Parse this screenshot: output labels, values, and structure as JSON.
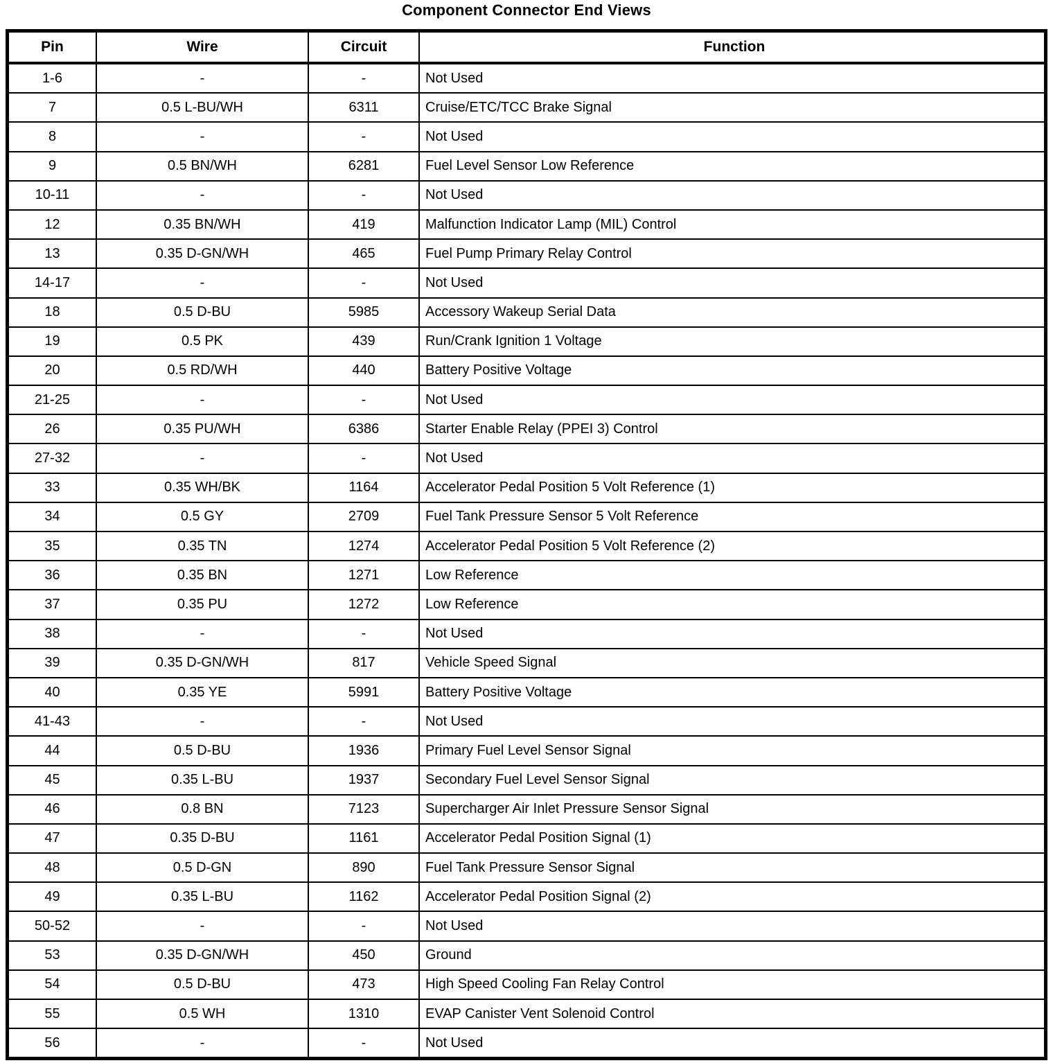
{
  "title": "Component Connector End Views",
  "colors": {
    "background": "#ffffff",
    "text": "#000000",
    "border": "#000000"
  },
  "table": {
    "headers": [
      "Pin",
      "Wire",
      "Circuit",
      "Function"
    ],
    "rows": [
      {
        "pin": "1-6",
        "wire": "-",
        "circuit": "-",
        "function": "Not Used"
      },
      {
        "pin": "7",
        "wire": "0.5 L-BU/WH",
        "circuit": "6311",
        "function": "Cruise/ETC/TCC Brake Signal"
      },
      {
        "pin": "8",
        "wire": "-",
        "circuit": "-",
        "function": "Not Used"
      },
      {
        "pin": "9",
        "wire": "0.5 BN/WH",
        "circuit": "6281",
        "function": "Fuel Level Sensor Low Reference"
      },
      {
        "pin": "10-11",
        "wire": "-",
        "circuit": "-",
        "function": "Not Used"
      },
      {
        "pin": "12",
        "wire": "0.35 BN/WH",
        "circuit": "419",
        "function": "Malfunction Indicator Lamp (MIL) Control"
      },
      {
        "pin": "13",
        "wire": "0.35 D-GN/WH",
        "circuit": "465",
        "function": "Fuel Pump Primary Relay Control"
      },
      {
        "pin": "14-17",
        "wire": "-",
        "circuit": "-",
        "function": "Not Used"
      },
      {
        "pin": "18",
        "wire": "0.5 D-BU",
        "circuit": "5985",
        "function": "Accessory Wakeup Serial Data"
      },
      {
        "pin": "19",
        "wire": "0.5 PK",
        "circuit": "439",
        "function": "Run/Crank Ignition 1 Voltage"
      },
      {
        "pin": "20",
        "wire": "0.5 RD/WH",
        "circuit": "440",
        "function": "Battery Positive Voltage"
      },
      {
        "pin": "21-25",
        "wire": "-",
        "circuit": "-",
        "function": "Not Used"
      },
      {
        "pin": "26",
        "wire": "0.35 PU/WH",
        "circuit": "6386",
        "function": "Starter Enable Relay (PPEI 3) Control"
      },
      {
        "pin": "27-32",
        "wire": "-",
        "circuit": "-",
        "function": "Not Used"
      },
      {
        "pin": "33",
        "wire": "0.35 WH/BK",
        "circuit": "1164",
        "function": "Accelerator Pedal Position 5 Volt Reference (1)"
      },
      {
        "pin": "34",
        "wire": "0.5 GY",
        "circuit": "2709",
        "function": "Fuel Tank Pressure Sensor 5 Volt Reference"
      },
      {
        "pin": "35",
        "wire": "0.35 TN",
        "circuit": "1274",
        "function": "Accelerator Pedal Position 5 Volt Reference (2)"
      },
      {
        "pin": "36",
        "wire": "0.35 BN",
        "circuit": "1271",
        "function": "Low Reference"
      },
      {
        "pin": "37",
        "wire": "0.35 PU",
        "circuit": "1272",
        "function": "Low Reference"
      },
      {
        "pin": "38",
        "wire": "-",
        "circuit": "-",
        "function": "Not Used"
      },
      {
        "pin": "39",
        "wire": "0.35 D-GN/WH",
        "circuit": "817",
        "function": "Vehicle Speed Signal"
      },
      {
        "pin": "40",
        "wire": "0.35 YE",
        "circuit": "5991",
        "function": "Battery Positive Voltage"
      },
      {
        "pin": "41-43",
        "wire": "-",
        "circuit": "-",
        "function": "Not Used"
      },
      {
        "pin": "44",
        "wire": "0.5 D-BU",
        "circuit": "1936",
        "function": "Primary Fuel Level Sensor Signal"
      },
      {
        "pin": "45",
        "wire": "0.35 L-BU",
        "circuit": "1937",
        "function": "Secondary Fuel Level Sensor Signal"
      },
      {
        "pin": "46",
        "wire": "0.8 BN",
        "circuit": "7123",
        "function": "Supercharger Air Inlet Pressure Sensor Signal"
      },
      {
        "pin": "47",
        "wire": "0.35 D-BU",
        "circuit": "1161",
        "function": "Accelerator Pedal Position Signal (1)"
      },
      {
        "pin": "48",
        "wire": "0.5 D-GN",
        "circuit": "890",
        "function": "Fuel Tank Pressure Sensor Signal"
      },
      {
        "pin": "49",
        "wire": "0.35 L-BU",
        "circuit": "1162",
        "function": "Accelerator Pedal Position Signal (2)"
      },
      {
        "pin": "50-52",
        "wire": "-",
        "circuit": "-",
        "function": "Not Used"
      },
      {
        "pin": "53",
        "wire": "0.35 D-GN/WH",
        "circuit": "450",
        "function": "Ground"
      },
      {
        "pin": "54",
        "wire": "0.5 D-BU",
        "circuit": "473",
        "function": "High Speed Cooling Fan Relay Control"
      },
      {
        "pin": "55",
        "wire": "0.5 WH",
        "circuit": "1310",
        "function": "EVAP Canister Vent Solenoid Control"
      },
      {
        "pin": "56",
        "wire": "-",
        "circuit": "-",
        "function": "Not Used"
      }
    ]
  }
}
